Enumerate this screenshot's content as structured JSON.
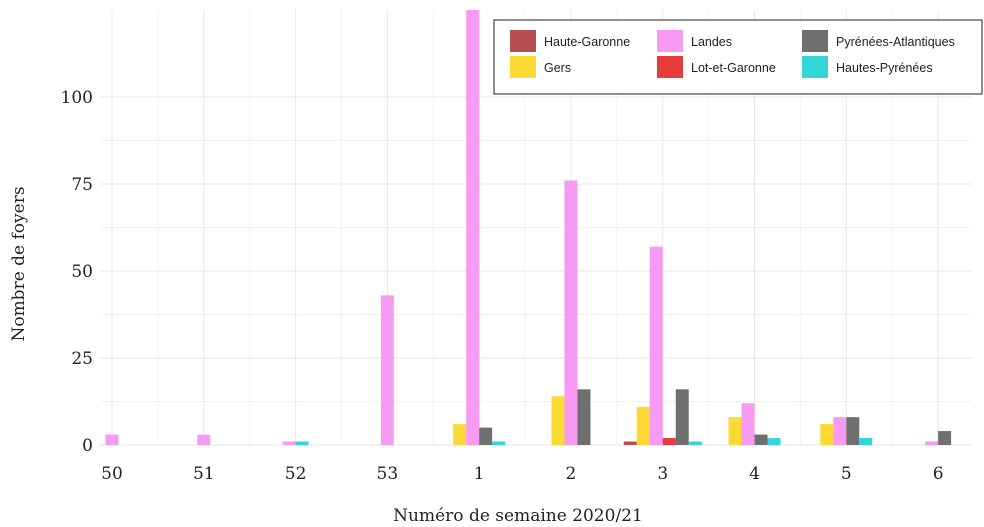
{
  "chart_data": {
    "type": "bar",
    "xlabel": "Numéro de semaine 2020/21",
    "ylabel": "Nombre de foyers",
    "yticks": [
      0,
      25,
      50,
      75,
      100
    ],
    "ylim": [
      0,
      125
    ],
    "grid": true,
    "legend_position": "top-right",
    "categories": [
      "50",
      "51",
      "52",
      "53",
      "1",
      "2",
      "3",
      "4",
      "5",
      "6"
    ],
    "series": [
      {
        "name": "Haute-Garonne",
        "color": "#b84f4f",
        "values": [
          0,
          0,
          0,
          0,
          0,
          0,
          1,
          0,
          0,
          0
        ]
      },
      {
        "name": "Gers",
        "color": "#fcd935",
        "values": [
          0,
          0,
          0,
          0,
          6,
          14,
          11,
          8,
          6,
          0
        ]
      },
      {
        "name": "Landes",
        "color": "#f79af2",
        "values": [
          3,
          3,
          1,
          43,
          125,
          76,
          57,
          12,
          8,
          1
        ]
      },
      {
        "name": "Lot-et-Garonne",
        "color": "#e63c3c",
        "values": [
          0,
          0,
          0,
          0,
          0,
          0,
          2,
          0,
          0,
          0
        ]
      },
      {
        "name": "Pyrénées-Atlantiques",
        "color": "#6f6f6f",
        "values": [
          0,
          0,
          0,
          0,
          5,
          16,
          16,
          3,
          8,
          4
        ]
      },
      {
        "name": "Hautes-Pyrénées",
        "color": "#33d6d6",
        "values": [
          0,
          0,
          1,
          0,
          1,
          0,
          1,
          2,
          2,
          0
        ]
      }
    ],
    "legend_layout": [
      [
        "Haute-Garonne",
        "Landes",
        "Pyrénées-Atlantiques"
      ],
      [
        "Gers",
        "Lot-et-Garonne",
        "Hautes-Pyrénées"
      ]
    ]
  }
}
